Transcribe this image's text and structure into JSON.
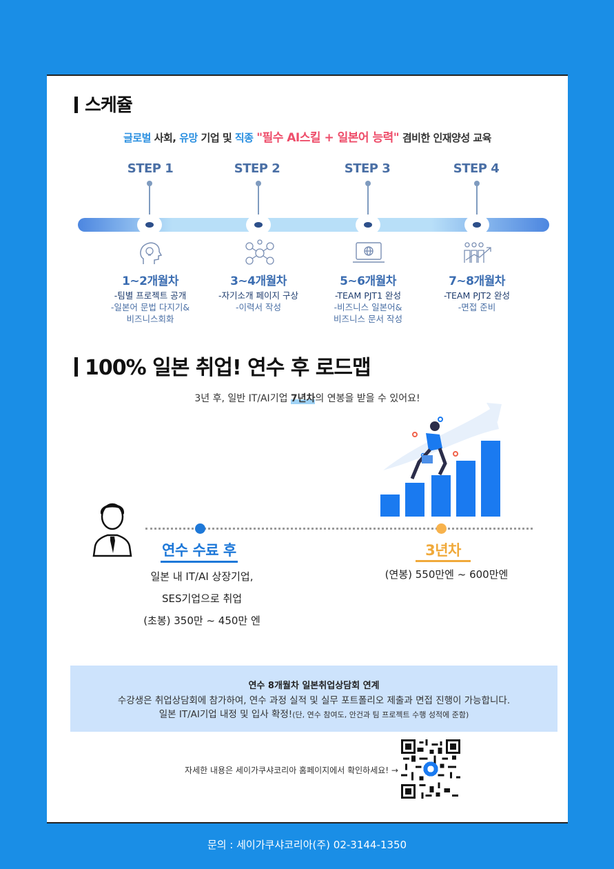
{
  "schedule": {
    "title": "스케쥴",
    "tagline": {
      "w1": "글로벌",
      "t1": " 사회, ",
      "w2": "유망",
      "t2": " 기업 및 ",
      "w3": "직종",
      "t3": " ",
      "highlight": "\"필수 AI스킬 + 일본어 능력\"",
      "t4": " 겸비한 인재양성 교육"
    },
    "steps": [
      {
        "label": "STEP 1",
        "icon": "head-bulb-icon",
        "month": "1~2개월차",
        "line1": "-팀별 프로젝트 공개",
        "line2": "-일본어 문법 다지기&",
        "line3": "비즈니스회화"
      },
      {
        "label": "STEP 2",
        "icon": "network-icon",
        "month": "3~4개월차",
        "line1": "-자기소개 페이지 구상",
        "line2": "-이력서 작성",
        "line3": ""
      },
      {
        "label": "STEP 3",
        "icon": "laptop-globe-icon",
        "month": "5~6개월차",
        "line1": "-TEAM PJT1 완성",
        "line2": "-비즈니스 일본어&",
        "line3": "비즈니스 문서 작성"
      },
      {
        "label": "STEP 4",
        "icon": "team-growth-icon",
        "month": "7~8개월차",
        "line1": "-TEAM PJT2 완성",
        "line2": "-면접 준비",
        "line3": ""
      }
    ]
  },
  "roadmap": {
    "title": "100% 일본 취업! 연수 후 로드맵",
    "subline_pre": "3년 후, 일반 IT/AI기업 ",
    "subline_hl": "7년차",
    "subline_post": "의 연봉을 받을 수 있어요!",
    "left_label": "연수 수료 후",
    "left_line1": "일본 내 IT/AI  상장기업,",
    "left_line2": "SES기업으로 취업",
    "left_line3": "(초봉) 350만 ~ 450만 엔",
    "right_label": "3년차",
    "right_line1": "(연봉) 550만엔 ~ 600만엔"
  },
  "notice": {
    "title": "연수 8개월차 일본취업상담회 연계",
    "line1": "수강생은 취업상담회에 참가하여, 연수 과정 실적 및 실무 포트폴리오 제출과 면접 진행이 가능합니다.",
    "line2": "일본 IT/AI기업 내정 및 입사 확정!",
    "line2_note": "(단, 연수 참여도, 안건과 팀 프로젝트 수행 성적에 준함)"
  },
  "more_info": "자세한 내용은 세이가쿠샤코리아 홈페이지에서 확인하세요! →",
  "footer": "문의 : 세이가쿠샤코리아(주) 02-3144-1350",
  "colors": {
    "background": "#1a8ee6",
    "accent_blue": "#1e78d8",
    "accent_orange": "#f0a93a",
    "highlight_pink": "#ee4d6a",
    "step_navy": "#4a6fa5"
  }
}
